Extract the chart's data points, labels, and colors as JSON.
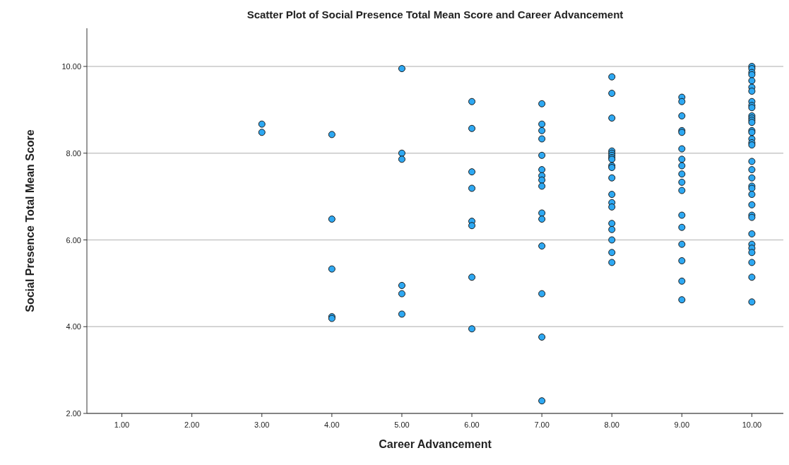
{
  "chart_data": {
    "type": "scatter",
    "title": "Scatter Plot of Social Presence Total Mean Score and Career Advancement",
    "xlabel": "Career Advancement",
    "ylabel": "Social Presence Total Mean Score",
    "xlim": [
      0.5,
      10.45
    ],
    "ylim": [
      2,
      10.88
    ],
    "xticks": [
      {
        "value": 1,
        "label": "1.00"
      },
      {
        "value": 2,
        "label": "2.00"
      },
      {
        "value": 3,
        "label": "3.00"
      },
      {
        "value": 4,
        "label": "4.00"
      },
      {
        "value": 5,
        "label": "5.00"
      },
      {
        "value": 6,
        "label": "6.00"
      },
      {
        "value": 7,
        "label": "7.00"
      },
      {
        "value": 8,
        "label": "8.00"
      },
      {
        "value": 9,
        "label": "9.00"
      },
      {
        "value": 10,
        "label": "10.00"
      }
    ],
    "yticks": [
      {
        "value": 2,
        "label": "2.00"
      },
      {
        "value": 4,
        "label": "4.00"
      },
      {
        "value": 6,
        "label": "6.00"
      },
      {
        "value": 8,
        "label": "8.00"
      },
      {
        "value": 10,
        "label": "10.00"
      }
    ],
    "grid": "y",
    "marker": "circle",
    "series": [
      {
        "color": "#2ea8f2",
        "x": [
          3,
          3,
          4,
          4,
          4,
          4,
          4,
          5,
          5,
          5,
          5,
          5,
          5,
          6,
          6,
          6,
          6,
          6,
          6,
          6,
          6,
          7,
          7,
          7,
          7,
          7,
          7,
          7,
          7,
          7,
          7,
          7,
          7,
          7,
          7,
          7,
          8,
          8,
          8,
          8,
          8,
          8,
          8,
          8,
          8,
          8,
          8,
          8,
          8,
          8,
          8,
          8,
          8,
          8,
          8,
          9,
          9,
          9,
          9,
          9,
          9,
          9,
          9,
          9,
          9,
          9,
          9,
          9,
          9,
          9,
          9,
          9,
          10,
          10,
          10,
          10,
          10,
          10,
          10,
          10,
          10,
          10,
          10,
          10,
          10,
          10,
          10,
          10,
          10,
          10,
          10,
          10,
          10,
          10,
          10,
          10,
          10,
          10,
          10,
          10,
          10,
          10,
          10,
          10,
          10,
          10,
          10
        ],
        "values": [
          8.67,
          8.48,
          8.43,
          6.48,
          5.33,
          4.23,
          4.19,
          9.95,
          8.0,
          7.86,
          4.95,
          4.76,
          4.29,
          9.19,
          8.57,
          7.57,
          7.19,
          6.43,
          6.33,
          5.14,
          3.95,
          9.14,
          8.67,
          8.52,
          8.33,
          7.95,
          7.62,
          7.48,
          7.38,
          7.24,
          6.62,
          6.48,
          5.86,
          4.76,
          3.76,
          2.29,
          9.76,
          9.38,
          8.81,
          8.05,
          8.0,
          7.95,
          7.9,
          7.86,
          7.71,
          7.67,
          7.43,
          7.05,
          6.86,
          6.76,
          6.38,
          6.24,
          6.0,
          5.71,
          5.48,
          9.29,
          9.19,
          8.86,
          8.52,
          8.48,
          8.1,
          7.86,
          7.71,
          7.52,
          7.33,
          7.14,
          6.57,
          6.29,
          5.9,
          5.52,
          5.05,
          4.62,
          10.0,
          9.95,
          9.86,
          9.81,
          9.67,
          9.52,
          9.43,
          9.19,
          9.1,
          9.05,
          8.86,
          8.81,
          8.76,
          8.71,
          8.52,
          8.48,
          8.33,
          8.24,
          8.19,
          7.81,
          7.62,
          7.43,
          7.24,
          7.19,
          7.05,
          6.81,
          6.57,
          6.52,
          6.14,
          5.9,
          5.81,
          5.71,
          5.48,
          5.14,
          4.57
        ]
      }
    ]
  }
}
